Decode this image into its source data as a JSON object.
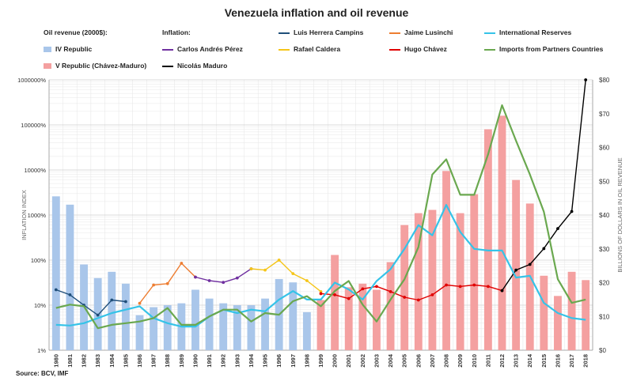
{
  "title": "Venezuela inflation and oil revenue",
  "legend": {
    "oil_header": "Oil revenue (2000$):",
    "inflation_header": "Inflation:",
    "items": [
      {
        "label": "Luis Herrera Campins",
        "color": "#1f4e79",
        "kind": "line"
      },
      {
        "label": "Jaime Lusinchi",
        "color": "#ed7d31",
        "kind": "line"
      },
      {
        "label": "International Reserves",
        "color": "#35c3e8",
        "kind": "line"
      },
      {
        "label": "IV Republic",
        "color": "#a9c6ea",
        "kind": "bar"
      },
      {
        "label": "Carlos Andrés Pérez",
        "color": "#7030a0",
        "kind": "line"
      },
      {
        "label": "Rafael Caldera",
        "color": "#f5c518",
        "kind": "line"
      },
      {
        "label": "Hugo Chávez",
        "color": "#e00000",
        "kind": "line"
      },
      {
        "label": "Imports from Partners Countries",
        "color": "#6aa84f",
        "kind": "line"
      },
      {
        "label": "V Republic (Chávez-Maduro)",
        "color": "#f4a0a0",
        "kind": "bar"
      },
      {
        "label": "Nicolás Maduro",
        "color": "#000000",
        "kind": "line"
      }
    ]
  },
  "source": "Source: BCV, IMF",
  "chart_data": {
    "type": "bar",
    "x": [
      "1980",
      "1981",
      "1982",
      "1983",
      "1984",
      "1985",
      "1986",
      "1987",
      "1988",
      "1989",
      "1990",
      "1991",
      "1992",
      "1993",
      "1994",
      "1995",
      "1996",
      "1997",
      "1998",
      "1999",
      "2000",
      "2001",
      "2002",
      "2003",
      "2004",
      "2005",
      "2006",
      "2007",
      "2008",
      "2009",
      "2010",
      "2011",
      "2012",
      "2013",
      "2014",
      "2015",
      "2016",
      "2017",
      "2018"
    ],
    "ylabel_left": "INFLATION INDEX",
    "ylabel_right": "BILLIONS OF DOLLARS IN OIL REVENUE",
    "left_ticks": [
      "1%",
      "10%",
      "100%",
      "1000%",
      "10000%",
      "100000%",
      "1000000%"
    ],
    "left_scale": "log",
    "left_range": [
      1,
      1000000
    ],
    "right_ticks": [
      "$0",
      "$10",
      "$20",
      "$30",
      "$40",
      "$50",
      "$60",
      "$70",
      "$80"
    ],
    "right_range": [
      0,
      80
    ],
    "bar_series": [
      {
        "name": "IV Republic",
        "axis": "left",
        "color": "#a9c6ea",
        "x": [
          "1980",
          "1981",
          "1982",
          "1983",
          "1984",
          "1985",
          "1986",
          "1987",
          "1988",
          "1989",
          "1990",
          "1991",
          "1992",
          "1993",
          "1994",
          "1995",
          "1996",
          "1997",
          "1998"
        ],
        "values": [
          2600,
          1700,
          80,
          40,
          55,
          30,
          6,
          9,
          10,
          11,
          22,
          14,
          11,
          10,
          10,
          14,
          38,
          32,
          7
        ]
      },
      {
        "name": "V Republic (Chávez-Maduro)",
        "axis": "left",
        "color": "#f4a0a0",
        "x": [
          "1999",
          "2000",
          "2001",
          "2002",
          "2003",
          "2004",
          "2005",
          "2006",
          "2007",
          "2008",
          "2009",
          "2010",
          "2011",
          "2012",
          "2013",
          "2014",
          "2015",
          "2016",
          "2017",
          "2018"
        ],
        "values": [
          13,
          130,
          25,
          30,
          22,
          90,
          600,
          1100,
          1300,
          9500,
          1100,
          2900,
          80000,
          160000,
          6000,
          1800,
          45,
          16,
          55,
          36
        ]
      }
    ],
    "line_series": [
      {
        "name": "Luis Herrera Campins",
        "axis": "left",
        "color": "#1f4e79",
        "x": [
          "1980",
          "1981",
          "1982",
          "1983",
          "1984",
          "1985"
        ],
        "values": [
          22,
          17,
          10,
          6,
          13,
          12
        ]
      },
      {
        "name": "Jaime Lusinchi",
        "axis": "left",
        "color": "#ed7d31",
        "x": [
          "1986",
          "1987",
          "1988",
          "1989",
          "1990"
        ],
        "values": [
          11,
          28,
          30,
          85,
          42
        ]
      },
      {
        "name": "Carlos Andrés Pérez",
        "axis": "left",
        "color": "#7030a0",
        "x": [
          "1990",
          "1991",
          "1992",
          "1993",
          "1994"
        ],
        "values": [
          42,
          35,
          32,
          40,
          64
        ]
      },
      {
        "name": "Rafael Caldera",
        "axis": "left",
        "color": "#f5c518",
        "x": [
          "1994",
          "1995",
          "1996",
          "1997",
          "1998",
          "1999"
        ],
        "values": [
          64,
          60,
          100,
          50,
          35,
          20
        ]
      },
      {
        "name": "Hugo Chávez",
        "axis": "left",
        "color": "#e00000",
        "x": [
          "1999",
          "2000",
          "2001",
          "2002",
          "2003",
          "2004",
          "2005",
          "2006",
          "2007",
          "2008",
          "2009",
          "2010",
          "2011",
          "2012"
        ],
        "values": [
          18,
          17,
          14,
          23,
          26,
          20,
          15,
          13,
          17,
          28,
          26,
          28,
          26,
          21
        ]
      },
      {
        "name": "Nicolás Maduro",
        "axis": "left",
        "color": "#000000",
        "x": [
          "2012",
          "2013",
          "2014",
          "2015",
          "2016",
          "2017",
          "2018"
        ],
        "values": [
          21,
          60,
          80,
          180,
          500,
          1200,
          1000000
        ]
      },
      {
        "name": "International Reserves",
        "axis": "right",
        "color": "#35c3e8",
        "x": [
          "1980",
          "1981",
          "1982",
          "1983",
          "1984",
          "1985",
          "1986",
          "1987",
          "1988",
          "1989",
          "1990",
          "1991",
          "1992",
          "1993",
          "1994",
          "1995",
          "1996",
          "1997",
          "1998",
          "1999",
          "2000",
          "2001",
          "2002",
          "2003",
          "2004",
          "2005",
          "2006",
          "2007",
          "2008",
          "2009",
          "2010",
          "2011",
          "2012",
          "2013",
          "2014",
          "2015",
          "2016",
          "2017",
          "2018"
        ],
        "values": [
          7.5,
          7.3,
          8,
          9.5,
          11,
          12,
          13,
          9.5,
          8,
          7,
          7,
          10,
          12,
          11,
          12,
          11.5,
          15,
          17.5,
          15,
          15,
          20,
          18,
          15,
          20.5,
          24,
          30,
          37,
          34,
          43,
          35,
          30,
          29.5,
          29.5,
          21.5,
          22,
          14,
          11,
          9.5,
          9
        ]
      },
      {
        "name": "Imports from Partners Countries",
        "axis": "right",
        "color": "#6aa84f",
        "x": [
          "1980",
          "1981",
          "1982",
          "1983",
          "1984",
          "1985",
          "1986",
          "1987",
          "1988",
          "1989",
          "1990",
          "1991",
          "1992",
          "1993",
          "1994",
          "1995",
          "1996",
          "1997",
          "1998",
          "1999",
          "2000",
          "2001",
          "2002",
          "2003",
          "2004",
          "2005",
          "2006",
          "2007",
          "2008",
          "2009",
          "2010",
          "2011",
          "2012",
          "2013",
          "2014",
          "2015",
          "2016",
          "2017",
          "2018"
        ],
        "values": [
          12.5,
          13.5,
          13,
          6.5,
          7.5,
          8,
          8.5,
          9.5,
          12.5,
          7.5,
          7.5,
          10,
          12,
          12,
          8.5,
          11,
          10.5,
          14.5,
          16,
          13,
          17.5,
          20.5,
          13.5,
          8.5,
          15,
          21,
          30.5,
          52,
          56.5,
          46,
          46,
          58,
          72.5,
          62,
          52,
          41,
          21,
          14,
          15
        ]
      }
    ]
  }
}
